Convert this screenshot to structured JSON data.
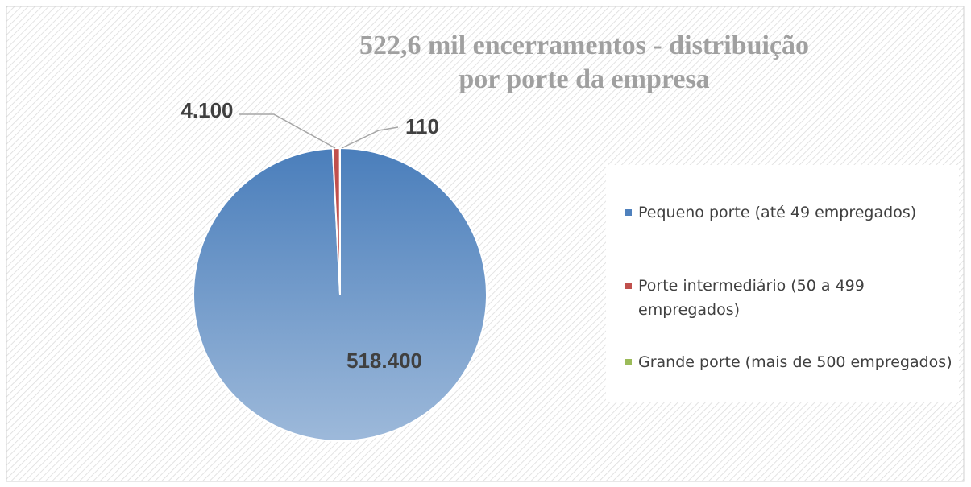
{
  "chart_data": {
    "type": "pie",
    "title": "522,6 mil encerramentos - distribuição por porte da empresa",
    "categories": [
      "Pequeno porte (até 49 empregados)",
      "Porte intermediário (50 a 499 empregados)",
      "Grande porte (mais de 500 empregados)"
    ],
    "values": [
      518400,
      4100,
      110
    ],
    "value_labels": [
      "518.400",
      "4.100",
      "110"
    ],
    "colors": [
      "#4f81bd",
      "#c0504d",
      "#9bbb59"
    ],
    "legend": "right"
  }
}
